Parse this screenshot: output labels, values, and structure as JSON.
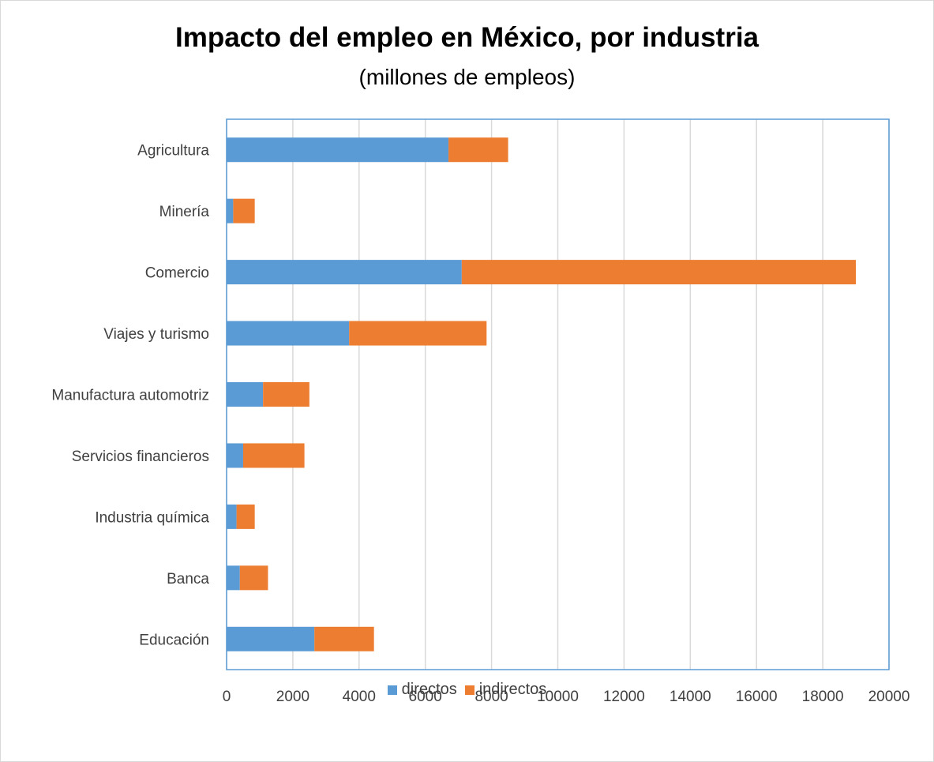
{
  "chart_data": {
    "type": "bar",
    "orientation": "horizontal",
    "stacked": true,
    "title": "Impacto del empleo en México, por industria",
    "subtitle": "(millones de empleos)",
    "categories": [
      "Agricultura",
      "Minería",
      "Comercio",
      "Viajes y turismo",
      "Manufactura automotriz",
      "Servicios financieros",
      "Industria química",
      "Banca",
      "Educación"
    ],
    "series": [
      {
        "name": "directos",
        "color": "#5b9bd5",
        "values": [
          6700,
          200,
          7100,
          3700,
          1100,
          500,
          300,
          400,
          2650
        ]
      },
      {
        "name": "indirectos",
        "color": "#ed7d31",
        "values": [
          1800,
          650,
          11900,
          4150,
          1400,
          1850,
          550,
          850,
          1800
        ]
      }
    ],
    "xlim": [
      0,
      20000
    ],
    "xticks": [
      "0",
      "2000",
      "4000",
      "6000",
      "8000",
      "10000",
      "12000",
      "14000",
      "16000",
      "18000",
      "20000"
    ],
    "grid": true,
    "legend": "bottom",
    "plot_border_color": "#5b9bd5",
    "grid_color": "#d9d9d9"
  }
}
